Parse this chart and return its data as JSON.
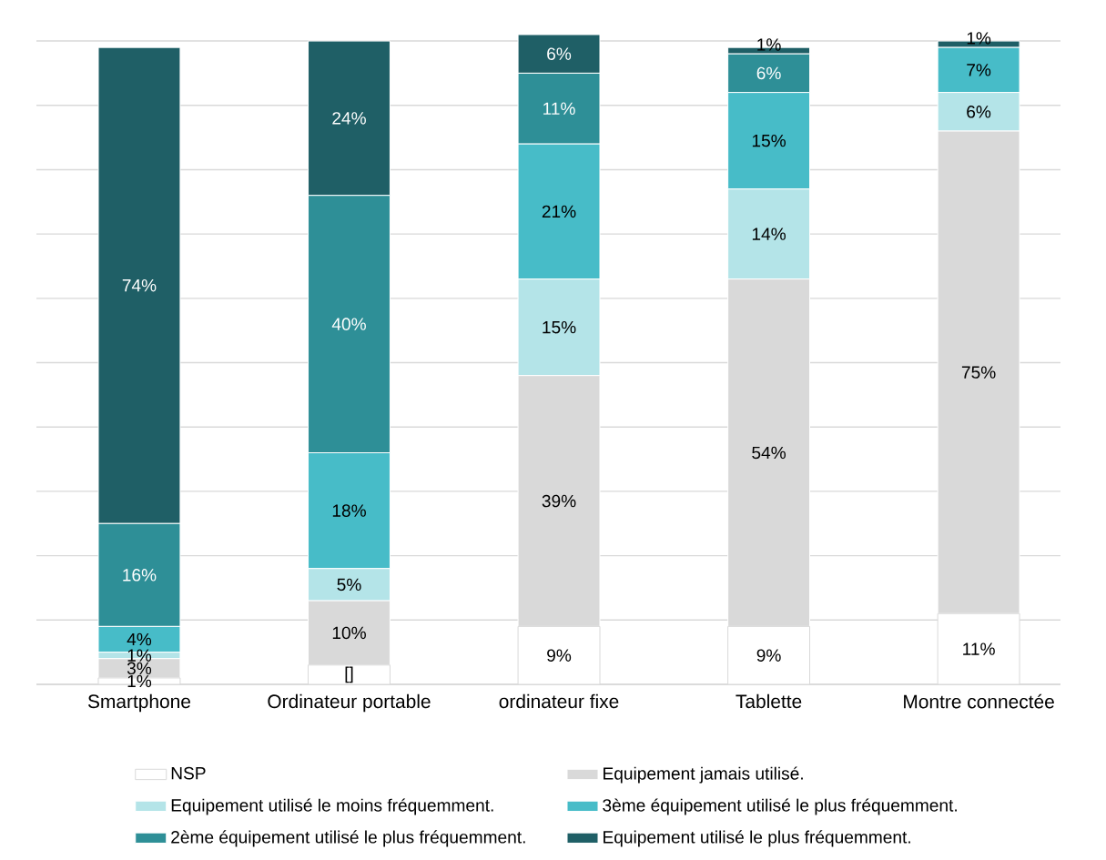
{
  "chart_data": {
    "type": "bar",
    "stacked": true,
    "categories": [
      "Smartphone",
      "Ordinateur portable",
      "ordinateur fixe",
      "Tablette",
      "Montre connectée"
    ],
    "series": [
      {
        "name": "NSP",
        "color": "#ffffff",
        "values": [
          1,
          3,
          9,
          9,
          11
        ],
        "value_labels": [
          "1%",
          "[]",
          "9%",
          "9%",
          "11%"
        ]
      },
      {
        "name": "Equipement jamais utilisé.",
        "color": "#d9d9d9",
        "values": [
          3,
          10,
          39,
          54,
          75
        ],
        "value_labels": [
          "3%",
          "10%",
          "39%",
          "54%",
          "75%"
        ]
      },
      {
        "name": "Equipement utilisé le moins fréquemment.",
        "color": "#b4e4e8",
        "values": [
          1,
          5,
          15,
          14,
          6
        ],
        "value_labels": [
          "1%",
          "5%",
          "15%",
          "14%",
          "6%"
        ]
      },
      {
        "name": "3ème équipement utilisé le plus fréquemment.",
        "color": "#47bcc8",
        "values": [
          4,
          18,
          21,
          15,
          7
        ],
        "value_labels": [
          "4%",
          "18%",
          "21%",
          "15%",
          "7%"
        ]
      },
      {
        "name": "2ème équipement utilisé le plus fréquemment.",
        "color": "#2e8f97",
        "values": [
          16,
          40,
          11,
          6,
          0
        ],
        "value_labels": [
          "16%",
          "40%",
          "11%",
          "6%",
          null
        ]
      },
      {
        "name": "Equipement utilisé le plus fréquemment.",
        "color": "#1f5f66",
        "values": [
          74,
          24,
          6,
          1,
          1
        ],
        "value_labels": [
          "74%",
          "24%",
          "6%",
          "1%",
          "1%"
        ]
      }
    ],
    "ylim": [
      0,
      101
    ],
    "yticks": [
      {
        "value": 0,
        "label": null
      },
      {
        "value": 10,
        "label": null
      },
      {
        "value": 20,
        "label": null
      },
      {
        "value": 30,
        "label": null
      },
      {
        "value": 40,
        "label": null
      },
      {
        "value": 50,
        "label": null
      },
      {
        "value": 60,
        "label": null
      },
      {
        "value": 70,
        "label": null
      },
      {
        "value": 80,
        "label": null
      },
      {
        "value": 90,
        "label": null
      },
      {
        "value": 100,
        "label": null
      }
    ],
    "tick_labels": "x",
    "grid": "y",
    "legend": "bottom"
  }
}
